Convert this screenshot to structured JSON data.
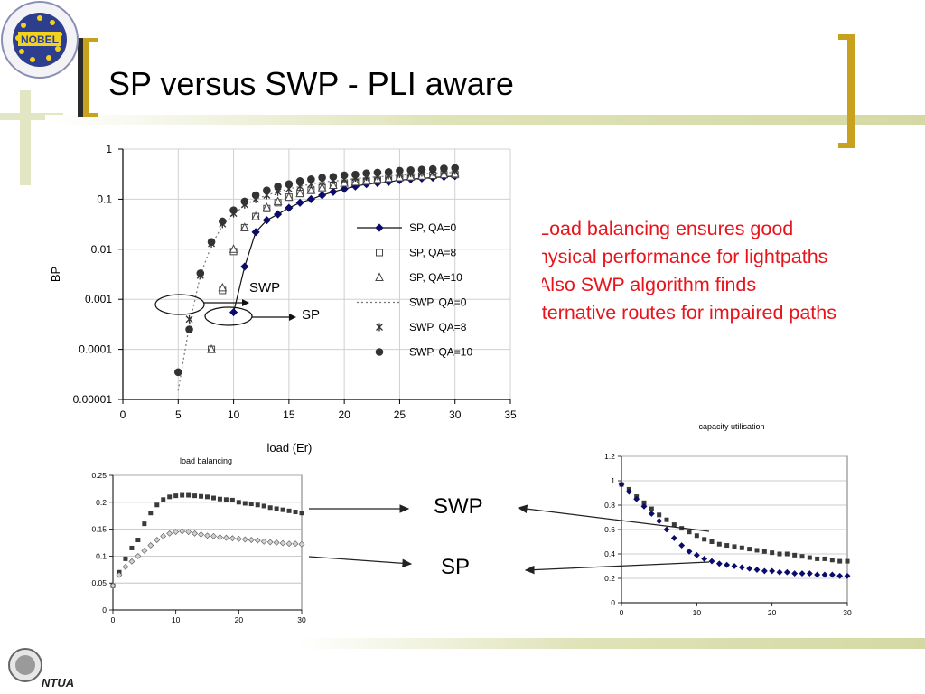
{
  "slide": {
    "title": "SP versus SWP - PLI aware",
    "bullets": [
      "- Load balancing ensures good",
      "physical performance for  lightpaths",
      "- Also SWP algorithm finds",
      "alternative routes for impaired paths"
    ],
    "logo_top_text": "NOBEL",
    "logo_bottom_text": "NTUA",
    "callout_swp": "SWP",
    "callout_sp": "SP",
    "colors": {
      "title_accent": "#c8a21e",
      "deco": "#d7dcae",
      "bullet_text": "#e8141c",
      "series_dark": "#0b0b6b"
    }
  },
  "chart_data": [
    {
      "type": "scatter",
      "title": "",
      "xlabel": "load (Er)",
      "ylabel": "BP",
      "xlim": [
        0,
        35
      ],
      "xticks": [
        "0",
        "5",
        "10",
        "15",
        "20",
        "25",
        "30",
        "35"
      ],
      "ylim": [
        1e-05,
        1
      ],
      "yscale": "log",
      "yticks": [
        "1",
        "0.1",
        "0.01",
        "0.001",
        "0.0001",
        "0.00001"
      ],
      "legend_position": "right",
      "annotations": [
        "SWP",
        "SP"
      ],
      "series": [
        {
          "name": "SP, QA=0",
          "style": "diamond-line",
          "x": [
            10,
            11,
            12,
            13,
            14,
            15,
            16,
            17,
            18,
            19,
            20,
            21,
            22,
            23,
            24,
            25,
            26,
            27,
            28,
            29,
            30
          ],
          "y": [
            0.00055,
            0.0045,
            0.022,
            0.038,
            0.05,
            0.067,
            0.085,
            0.1,
            0.12,
            0.14,
            0.16,
            0.18,
            0.2,
            0.21,
            0.22,
            0.24,
            0.25,
            0.26,
            0.27,
            0.28,
            0.29
          ]
        },
        {
          "name": "SP, QA=8",
          "style": "square",
          "x": [
            8,
            9,
            10,
            11,
            12,
            13,
            14,
            15,
            16,
            17,
            18,
            19,
            20,
            21,
            22,
            23,
            24,
            25,
            26,
            27,
            28,
            29,
            30
          ],
          "y": [
            0.0001,
            0.0015,
            0.009,
            0.027,
            0.045,
            0.065,
            0.085,
            0.11,
            0.13,
            0.15,
            0.17,
            0.19,
            0.21,
            0.22,
            0.23,
            0.24,
            0.26,
            0.27,
            0.28,
            0.29,
            0.3,
            0.31,
            0.31
          ]
        },
        {
          "name": "SP, QA=10",
          "style": "triangle",
          "x": [
            8,
            9,
            10,
            11,
            12,
            13,
            14,
            15,
            16,
            17,
            18,
            19,
            20,
            21,
            22,
            23,
            24,
            25,
            26,
            27,
            28,
            29,
            30
          ],
          "y": [
            0.0001,
            0.0017,
            0.01,
            0.027,
            0.045,
            0.068,
            0.09,
            0.11,
            0.13,
            0.15,
            0.17,
            0.19,
            0.21,
            0.22,
            0.23,
            0.25,
            0.26,
            0.27,
            0.28,
            0.29,
            0.3,
            0.31,
            0.32
          ]
        },
        {
          "name": "SWP, QA=0",
          "style": "dotted",
          "x": [
            5,
            6,
            7,
            8,
            9,
            10,
            11,
            12,
            13,
            14,
            15,
            16,
            17,
            18,
            19,
            20,
            21,
            22,
            23,
            24,
            25,
            26,
            27,
            28,
            29,
            30
          ],
          "y": [
            1.5e-05,
            0.0003,
            0.003,
            0.012,
            0.03,
            0.05,
            0.075,
            0.1,
            0.12,
            0.14,
            0.16,
            0.18,
            0.2,
            0.22,
            0.23,
            0.24,
            0.26,
            0.27,
            0.28,
            0.29,
            0.3,
            0.31,
            0.32,
            0.33,
            0.34,
            0.34
          ]
        },
        {
          "name": "SWP, QA=8",
          "style": "x",
          "x": [
            6,
            7,
            8,
            9,
            10,
            11,
            12,
            13,
            14,
            15,
            16,
            17,
            18,
            19,
            20,
            21,
            22,
            23,
            24,
            25,
            26,
            27,
            28,
            29,
            30
          ],
          "y": [
            0.0004,
            0.003,
            0.013,
            0.032,
            0.052,
            0.078,
            0.1,
            0.12,
            0.14,
            0.16,
            0.18,
            0.2,
            0.22,
            0.24,
            0.25,
            0.27,
            0.28,
            0.29,
            0.3,
            0.32,
            0.33,
            0.34,
            0.35,
            0.36,
            0.37
          ]
        },
        {
          "name": "SWP, QA=10",
          "style": "circle",
          "x": [
            5,
            6,
            7,
            8,
            9,
            10,
            11,
            12,
            13,
            14,
            15,
            16,
            17,
            18,
            19,
            20,
            21,
            22,
            23,
            24,
            25,
            26,
            27,
            28,
            29,
            30
          ],
          "y": [
            3.5e-05,
            0.00025,
            0.0033,
            0.014,
            0.036,
            0.06,
            0.09,
            0.12,
            0.15,
            0.18,
            0.2,
            0.23,
            0.25,
            0.27,
            0.28,
            0.3,
            0.31,
            0.33,
            0.34,
            0.35,
            0.37,
            0.38,
            0.39,
            0.4,
            0.41,
            0.42
          ]
        }
      ]
    },
    {
      "type": "scatter",
      "title": "load balancing",
      "xlim": [
        0,
        30
      ],
      "xticks": [
        "0",
        "10",
        "20",
        "30"
      ],
      "ylim": [
        0,
        0.25
      ],
      "yticks": [
        "0",
        "0.05",
        "0.1",
        "0.15",
        "0.2",
        "0.25"
      ],
      "series": [
        {
          "style": "square",
          "x": [
            0,
            1,
            2,
            3,
            4,
            5,
            6,
            7,
            8,
            9,
            10,
            11,
            12,
            13,
            14,
            15,
            16,
            17,
            18,
            19,
            20,
            21,
            22,
            23,
            24,
            25,
            26,
            27,
            28,
            29,
            30
          ],
          "y": [
            0.045,
            0.07,
            0.095,
            0.115,
            0.13,
            0.16,
            0.18,
            0.195,
            0.205,
            0.21,
            0.212,
            0.213,
            0.213,
            0.212,
            0.211,
            0.21,
            0.208,
            0.206,
            0.205,
            0.204,
            0.2,
            0.198,
            0.197,
            0.195,
            0.193,
            0.19,
            0.188,
            0.186,
            0.184,
            0.182,
            0.18
          ]
        },
        {
          "style": "diamond",
          "x": [
            0,
            1,
            2,
            3,
            4,
            5,
            6,
            7,
            8,
            9,
            10,
            11,
            12,
            13,
            14,
            15,
            16,
            17,
            18,
            19,
            20,
            21,
            22,
            23,
            24,
            25,
            26,
            27,
            28,
            29,
            30
          ],
          "y": [
            0.045,
            0.065,
            0.08,
            0.09,
            0.1,
            0.11,
            0.12,
            0.13,
            0.137,
            0.142,
            0.145,
            0.146,
            0.145,
            0.142,
            0.14,
            0.138,
            0.137,
            0.135,
            0.134,
            0.133,
            0.132,
            0.131,
            0.13,
            0.129,
            0.127,
            0.126,
            0.125,
            0.124,
            0.123,
            0.123,
            0.122
          ]
        }
      ]
    },
    {
      "type": "scatter",
      "title": "capacity utilisation",
      "xlim": [
        0,
        30
      ],
      "xticks": [
        "0",
        "10",
        "20",
        "30"
      ],
      "ylim": [
        0,
        1.2
      ],
      "yticks": [
        "0",
        "0.2",
        "0.4",
        "0.6",
        "0.8",
        "1",
        "1.2"
      ],
      "series": [
        {
          "style": "square",
          "x": [
            0,
            1,
            2,
            3,
            4,
            5,
            6,
            7,
            8,
            9,
            10,
            11,
            12,
            13,
            14,
            15,
            16,
            17,
            18,
            19,
            20,
            21,
            22,
            23,
            24,
            25,
            26,
            27,
            28,
            29,
            30
          ],
          "y": [
            0.97,
            0.93,
            0.87,
            0.82,
            0.77,
            0.72,
            0.68,
            0.64,
            0.61,
            0.58,
            0.55,
            0.52,
            0.5,
            0.48,
            0.47,
            0.46,
            0.45,
            0.44,
            0.43,
            0.42,
            0.41,
            0.4,
            0.4,
            0.39,
            0.38,
            0.37,
            0.36,
            0.36,
            0.35,
            0.34,
            0.34
          ]
        },
        {
          "style": "diamond",
          "x": [
            0,
            1,
            2,
            3,
            4,
            5,
            6,
            7,
            8,
            9,
            10,
            11,
            12,
            13,
            14,
            15,
            16,
            17,
            18,
            19,
            20,
            21,
            22,
            23,
            24,
            25,
            26,
            27,
            28,
            29,
            30
          ],
          "y": [
            0.97,
            0.91,
            0.85,
            0.79,
            0.73,
            0.67,
            0.6,
            0.53,
            0.47,
            0.42,
            0.39,
            0.36,
            0.34,
            0.32,
            0.31,
            0.3,
            0.29,
            0.28,
            0.27,
            0.26,
            0.26,
            0.25,
            0.25,
            0.24,
            0.24,
            0.24,
            0.23,
            0.23,
            0.23,
            0.22,
            0.22
          ]
        }
      ]
    }
  ]
}
